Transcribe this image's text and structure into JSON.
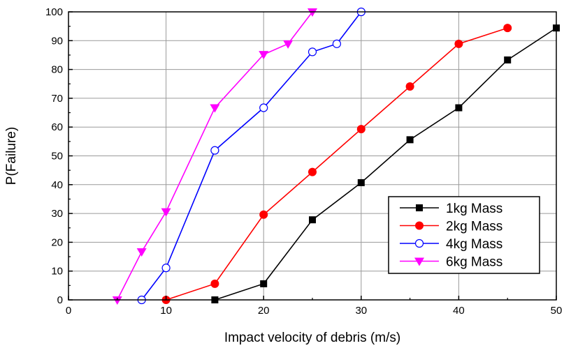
{
  "chart_data": {
    "type": "line",
    "xlabel": "Impact velocity of debris (m/s)",
    "ylabel": "P(Failure)",
    "xlim": [
      0,
      50
    ],
    "ylim": [
      0,
      100
    ],
    "x_ticks": [
      0,
      10,
      20,
      30,
      40,
      50
    ],
    "y_ticks": [
      0,
      10,
      20,
      30,
      40,
      50,
      60,
      70,
      80,
      90,
      100
    ],
    "grid": true,
    "legend_position": "lower-right",
    "series": [
      {
        "name": "1kg Mass",
        "color": "#000000",
        "marker": "square-filled",
        "x": [
          15,
          20,
          25,
          30,
          35,
          40,
          45,
          50
        ],
        "y": [
          0,
          5.6,
          27.8,
          40.7,
          55.6,
          66.7,
          83.3,
          94.4
        ]
      },
      {
        "name": "2kg Mass",
        "color": "#ff0000",
        "marker": "circle-filled",
        "x": [
          10,
          15,
          20,
          25,
          30,
          35,
          40,
          45
        ],
        "y": [
          0,
          5.6,
          29.6,
          44.4,
          59.3,
          74.1,
          88.9,
          94.4
        ]
      },
      {
        "name": "4kg Mass",
        "color": "#0000ff",
        "marker": "circle-open",
        "x": [
          7.5,
          10,
          15,
          20,
          25,
          27.5,
          30
        ],
        "y": [
          0,
          11.1,
          51.9,
          66.7,
          86.1,
          88.9,
          100
        ]
      },
      {
        "name": "6kg Mass",
        "color": "#ff00ff",
        "marker": "triangle-down-filled",
        "x": [
          5,
          7.5,
          10,
          15,
          20,
          22.5,
          25
        ],
        "y": [
          0,
          16.7,
          30.6,
          66.7,
          85.2,
          88.9,
          100
        ]
      }
    ]
  }
}
